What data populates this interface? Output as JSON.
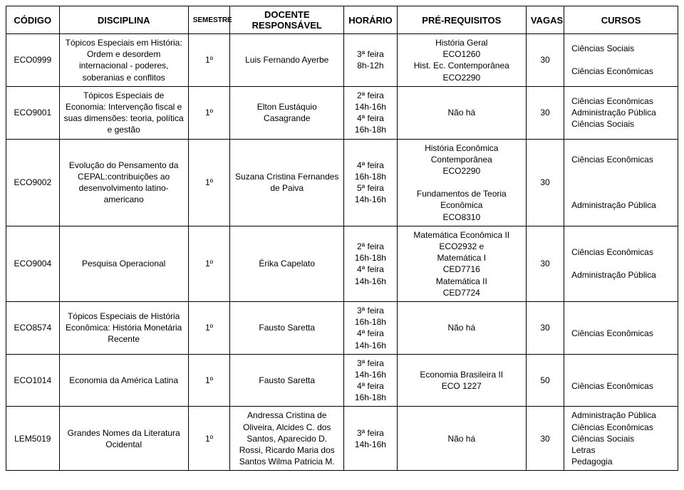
{
  "headers": {
    "codigo": "CÓDIGO",
    "disciplina": "DISCIPLINA",
    "semestre": "SEMESTRE",
    "docente": "DOCENTE RESPONSÁVEL",
    "horario": "HORÁRIO",
    "prereq": "PRÉ-REQUISITOS",
    "vagas": "VAGAS",
    "cursos": "CURSOS"
  },
  "rows": [
    {
      "codigo": "ECO0999",
      "disciplina": "Tópicos Especiais em História: Ordem e desordem internacional - poderes, soberanias e conflitos",
      "semestre": "1º",
      "docente": "Luis Fernando Ayerbe",
      "horario": "3ª feira\n8h-12h",
      "prereq": "História Geral\nECO1260\nHist. Ec. Contemporânea\nECO2290",
      "vagas": "30",
      "cursos": "Ciências Sociais\n\nCiências Econômicas"
    },
    {
      "codigo": "ECO9001",
      "disciplina": "Tópicos Especiais de Economia: Intervenção fiscal e suas dimensões: teoria, política e gestão",
      "semestre": "1º",
      "docente": "Elton Eustáquio Casagrande",
      "horario": "2ª feira\n14h-16h\n4ª feira\n16h-18h",
      "prereq": "Não há",
      "vagas": "30",
      "cursos": "Ciências Econômicas\nAdministração Pública\nCiências Sociais"
    },
    {
      "codigo": "ECO9002",
      "disciplina": "Evolução do Pensamento da CEPAL:contribuições ao desenvolvimento latino-americano",
      "semestre": "1º",
      "docente": "Suzana Cristina Fernandes de Paiva",
      "horario": "4ª feira\n16h-18h\n5ª feira\n14h-16h",
      "prereq": "História Econômica\nContemporânea\nECO2290\n\nFundamentos de Teoria\nEconômica\nECO8310",
      "vagas": "30",
      "cursos": "Ciências Econômicas\n\n\n\nAdministração Pública"
    },
    {
      "codigo": "ECO9004",
      "disciplina": "Pesquisa Operacional",
      "semestre": "1º",
      "docente": "Érika Capelato",
      "horario": "2ª feira\n16h-18h\n4ª feira\n14h-16h",
      "prereq": "Matemática Econômica II\nECO2932 e\nMatemática I\nCED7716\nMatemática II\nCED7724",
      "vagas": "30",
      "cursos": "Ciências Econômicas\n\nAdministração Pública"
    },
    {
      "codigo": "ECO8574",
      "disciplina": "Tópicos Especiais de História Econômica: História Monetária Recente",
      "semestre": "1º",
      "docente": "Fausto Saretta",
      "horario": "3ª feira\n16h-18h\n4ª feira\n14h-16h",
      "prereq": "Não há",
      "vagas": "30",
      "cursos": "\nCiências Econômicas"
    },
    {
      "codigo": "ECO1014",
      "disciplina": "Economia da América Latina",
      "semestre": "1º",
      "docente": "Fausto Saretta",
      "horario": "3ª feira\n14h-16h\n4ª feira\n16h-18h",
      "prereq": "Economia Brasileira  II\nECO 1227",
      "vagas": "50",
      "cursos": "\nCiências Econômicas"
    },
    {
      "codigo": "LEM5019",
      "disciplina": "Grandes Nomes da Literatura Ocidental",
      "semestre": "1º",
      "docente": "Andressa Cristina de Oliveira, Alcides C. dos Santos, Aparecido D. Rossi, Ricardo Maria dos Santos Wilma Patricia M.",
      "horario": "3ª feira\n14h-16h",
      "prereq": "Não há",
      "vagas": "30",
      "cursos": "Administração Pública\nCiências Econômicas\nCiências Sociais\nLetras\nPedagogia"
    }
  ]
}
